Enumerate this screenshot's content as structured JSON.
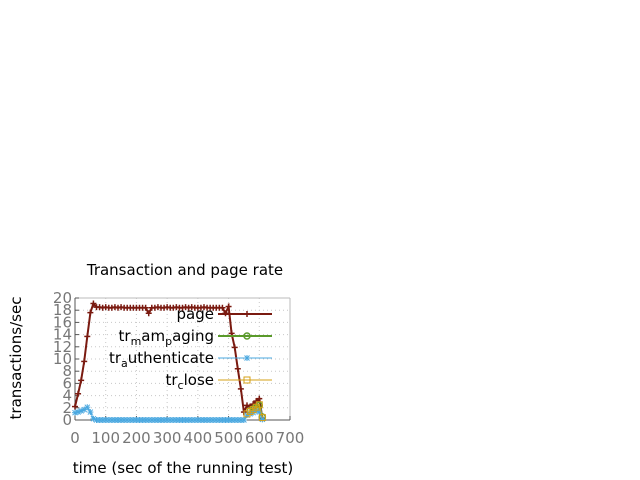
{
  "chart_data": {
    "type": "line",
    "title": "Transaction and page rate",
    "xlabel": "time (sec of the running test)",
    "ylabel": "transactions/sec",
    "xlim": [
      0,
      700
    ],
    "ylim": [
      0,
      20
    ],
    "x_ticks": [
      "0",
      "100",
      "200",
      "300",
      "400",
      "500",
      "600",
      "700"
    ],
    "y_ticks": [
      "0",
      "2",
      "4",
      "6",
      "8",
      "10",
      "12",
      "14",
      "16",
      "18",
      "20"
    ],
    "grid": true,
    "legend_position": "top-right",
    "series": [
      {
        "name": "page",
        "legend_main": "page",
        "legend_sub": "",
        "legend_tail": "",
        "color": "#7a1a10",
        "marker": "plus",
        "x": [
          0,
          10,
          20,
          30,
          40,
          50,
          60,
          70,
          80,
          90,
          100,
          110,
          120,
          130,
          140,
          150,
          160,
          170,
          180,
          190,
          200,
          210,
          220,
          230,
          240,
          250,
          260,
          270,
          280,
          290,
          300,
          310,
          320,
          330,
          340,
          350,
          360,
          370,
          380,
          390,
          400,
          410,
          420,
          430,
          440,
          450,
          460,
          470,
          480,
          490,
          500,
          510,
          520,
          530,
          540,
          550,
          560,
          570,
          580,
          590,
          600,
          610
        ],
        "y": [
          2.2,
          4.3,
          6.5,
          9.6,
          13.7,
          17.6,
          19.1,
          18.5,
          18.5,
          18.4,
          18.5,
          18.4,
          18.4,
          18.5,
          18.4,
          18.5,
          18.4,
          18.4,
          18.4,
          18.4,
          18.4,
          18.4,
          18.4,
          18.4,
          17.5,
          18.4,
          18.4,
          18.5,
          18.4,
          18.4,
          18.5,
          18.4,
          18.4,
          18.5,
          18.4,
          18.4,
          18.5,
          18.4,
          18.5,
          18.4,
          18.4,
          18.4,
          18.5,
          18.4,
          18.4,
          18.4,
          18.4,
          18.4,
          18.4,
          17.5,
          18.6,
          14.2,
          11.9,
          8.4,
          5.1,
          1.3,
          2.4,
          2.2,
          2.6,
          3.1,
          3.5,
          0.3
        ]
      },
      {
        "name": "tr_mam_paging",
        "legend_main": "tr",
        "legend_sub": "m",
        "legend_tail": "am",
        "legend_sub2": "p",
        "legend_tail2": "aging",
        "color": "#5a9a2a",
        "marker": "circle",
        "x": [
          570,
          580,
          590,
          600,
          610
        ],
        "y": [
          1.5,
          1.8,
          2.0,
          2.4,
          0.5
        ]
      },
      {
        "name": "tr_authenticate",
        "legend_main": "tr",
        "legend_sub": "a",
        "legend_tail": "uthenticate",
        "color": "#4aa8e0",
        "marker": "star",
        "x": [
          0,
          10,
          20,
          30,
          40,
          50,
          60,
          70,
          80,
          90,
          100,
          110,
          120,
          130,
          140,
          150,
          160,
          170,
          180,
          190,
          200,
          210,
          220,
          230,
          240,
          250,
          260,
          270,
          280,
          290,
          300,
          310,
          320,
          330,
          340,
          350,
          360,
          370,
          380,
          390,
          400,
          410,
          420,
          430,
          440,
          450,
          460,
          470,
          480,
          490,
          500,
          510,
          520,
          530,
          540,
          550,
          560,
          570,
          580,
          590,
          600,
          610
        ],
        "y": [
          1.2,
          1.3,
          1.5,
          1.7,
          2.1,
          1.3,
          0.2,
          0,
          0,
          0,
          0,
          0,
          0,
          0,
          0,
          0,
          0,
          0,
          0,
          0,
          0,
          0,
          0,
          0,
          0,
          0,
          0,
          0,
          0,
          0,
          0,
          0,
          0,
          0,
          0,
          0,
          0,
          0,
          0,
          0,
          0,
          0,
          0,
          0,
          0,
          0,
          0,
          0,
          0,
          0,
          0,
          0,
          0,
          0,
          0,
          0,
          0.8,
          1.0,
          1.2,
          1.5,
          1.3,
          0.1
        ]
      },
      {
        "name": "tr_close",
        "legend_main": "tr",
        "legend_sub": "c",
        "legend_tail": "lose",
        "color": "#d4a017",
        "marker": "square",
        "x": [
          560,
          570,
          580,
          590,
          600,
          610
        ],
        "y": [
          1.0,
          1.4,
          1.7,
          2.1,
          2.5,
          0.4
        ]
      }
    ]
  }
}
